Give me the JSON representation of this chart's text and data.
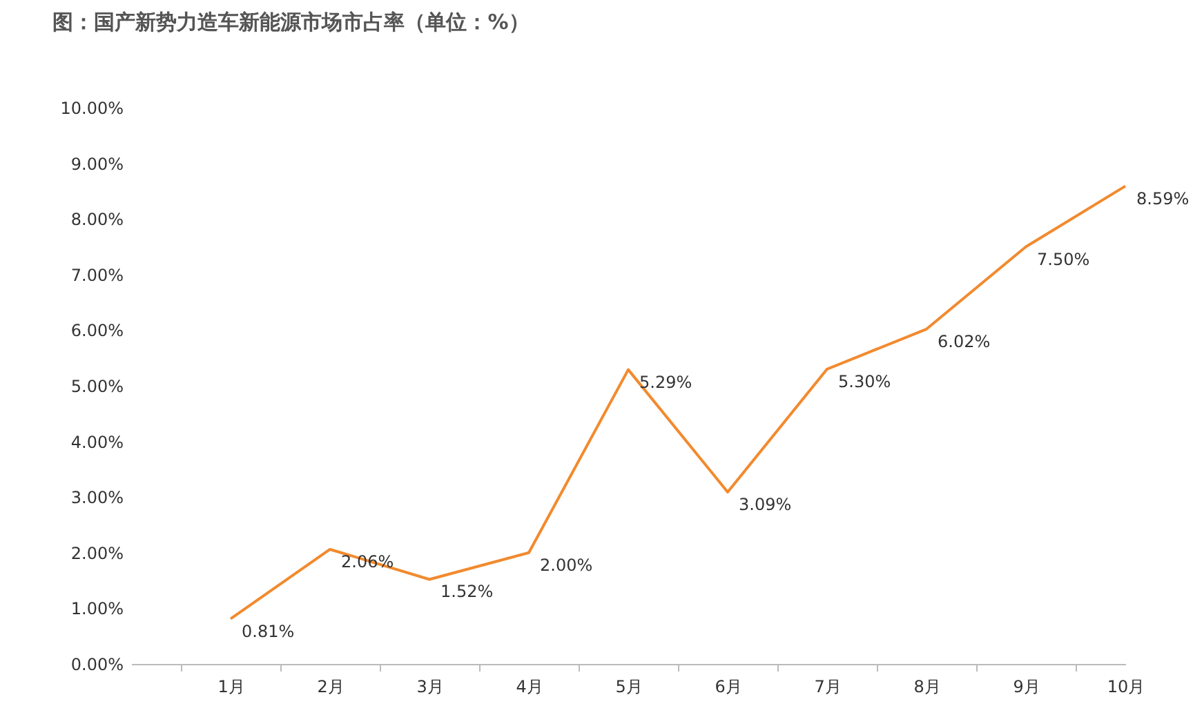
{
  "chart_data": {
    "type": "line",
    "title": "图：国产新势力造车新能源市场市占率（单位：%）",
    "categories": [
      "1月",
      "2月",
      "3月",
      "4月",
      "5月",
      "6月",
      "7月",
      "8月",
      "9月",
      "10月"
    ],
    "series": [
      {
        "color": "#f28a2e",
        "values": [
          0.81,
          2.06,
          1.52,
          2.0,
          5.29,
          3.09,
          5.3,
          6.02,
          7.5,
          8.59
        ],
        "value_labels": [
          "0.81%",
          "2.06%",
          "1.52%",
          "2.00%",
          "5.29%",
          "3.09%",
          "5.30%",
          "6.02%",
          "7.50%",
          "8.59%"
        ]
      }
    ],
    "ylim": [
      0,
      10
    ],
    "yticks": [
      {
        "value": 0,
        "label": "0.00%"
      },
      {
        "value": 1,
        "label": "1.00%"
      },
      {
        "value": 2,
        "label": "2.00%"
      },
      {
        "value": 3,
        "label": "3.00%"
      },
      {
        "value": 4,
        "label": "4.00%"
      },
      {
        "value": 5,
        "label": "5.00%"
      },
      {
        "value": 6,
        "label": "6.00%"
      },
      {
        "value": 7,
        "label": "7.00%"
      },
      {
        "value": 8,
        "label": "8.00%"
      },
      {
        "value": 9,
        "label": "9.00%"
      },
      {
        "value": 10,
        "label": "10.00%"
      }
    ],
    "grid": false,
    "marker": "none",
    "line_style": "solid"
  }
}
